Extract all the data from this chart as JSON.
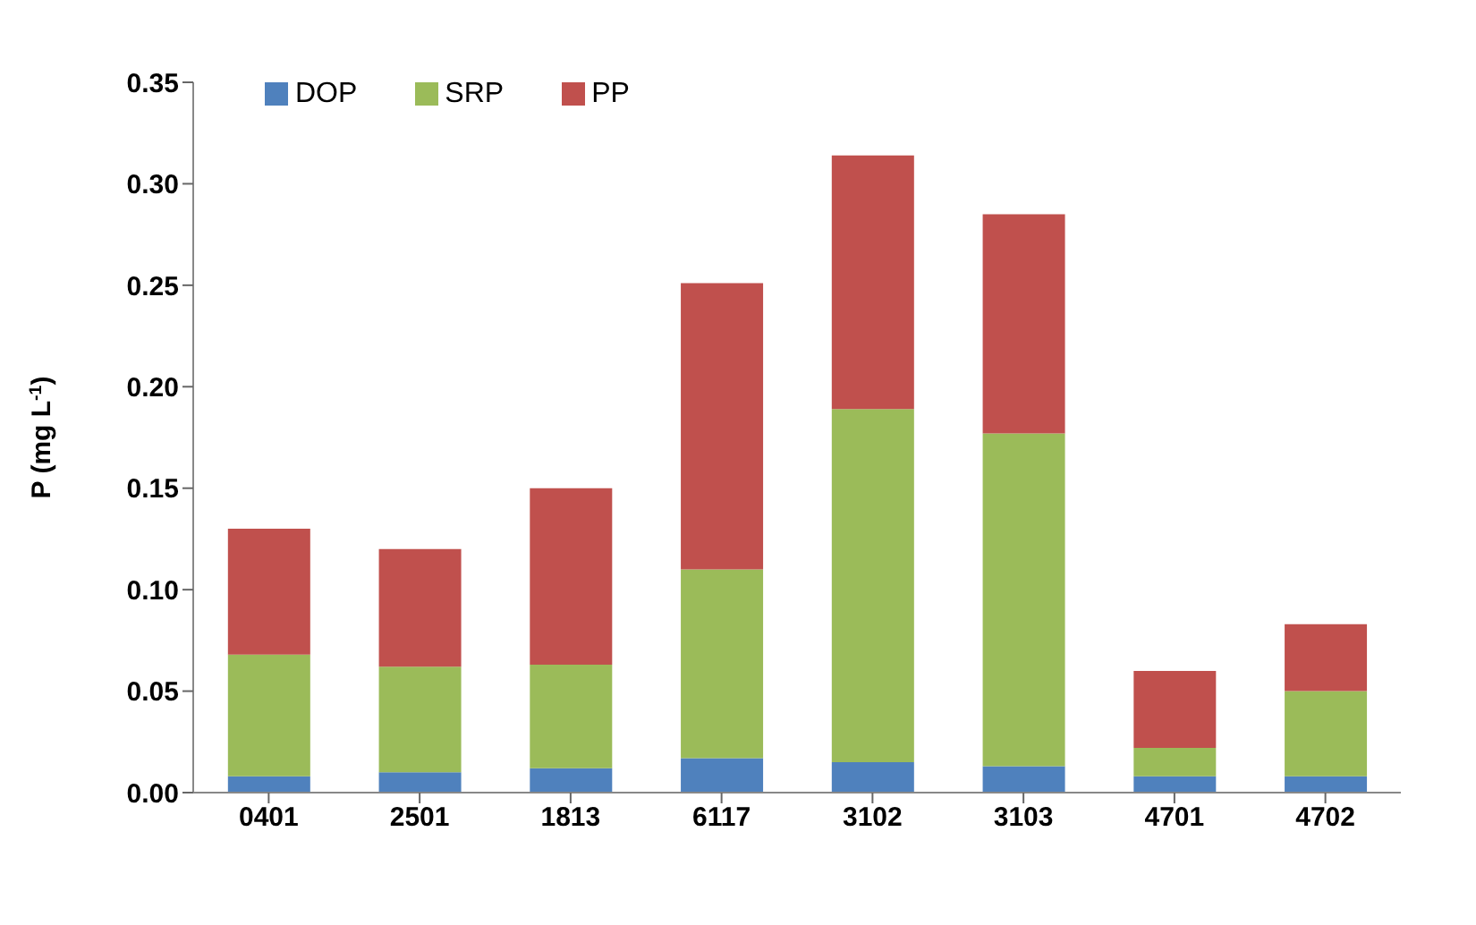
{
  "chart_data": {
    "type": "bar",
    "stacked": true,
    "categories": [
      "0401",
      "2501",
      "1813",
      "6117",
      "3102",
      "3103",
      "4701",
      "4702"
    ],
    "series": [
      {
        "name": "DOP",
        "color": "#4f81bd",
        "values": [
          0.008,
          0.01,
          0.012,
          0.017,
          0.015,
          0.013,
          0.008,
          0.008
        ]
      },
      {
        "name": "SRP",
        "color": "#9bbb59",
        "values": [
          0.06,
          0.052,
          0.051,
          0.093,
          0.174,
          0.164,
          0.014,
          0.042
        ]
      },
      {
        "name": "PP",
        "color": "#c0504d",
        "values": [
          0.062,
          0.058,
          0.087,
          0.141,
          0.125,
          0.108,
          0.038,
          0.033
        ]
      }
    ],
    "ylabel": "P (mg L$^{-1}$)",
    "ylim": [
      0,
      0.35
    ],
    "yticks": [
      {
        "value": 0,
        "label": "0.00"
      },
      {
        "value": 0.05,
        "label": "0.05"
      },
      {
        "value": 0.1,
        "label": "0.10"
      },
      {
        "value": 0.15,
        "label": "0.15"
      },
      {
        "value": 0.2,
        "label": "0.20"
      },
      {
        "value": 0.25,
        "label": "0.25"
      },
      {
        "value": 0.3,
        "label": "0.30"
      },
      {
        "value": 0.35,
        "label": "0.35"
      }
    ],
    "grid": false,
    "legend": "top left"
  }
}
